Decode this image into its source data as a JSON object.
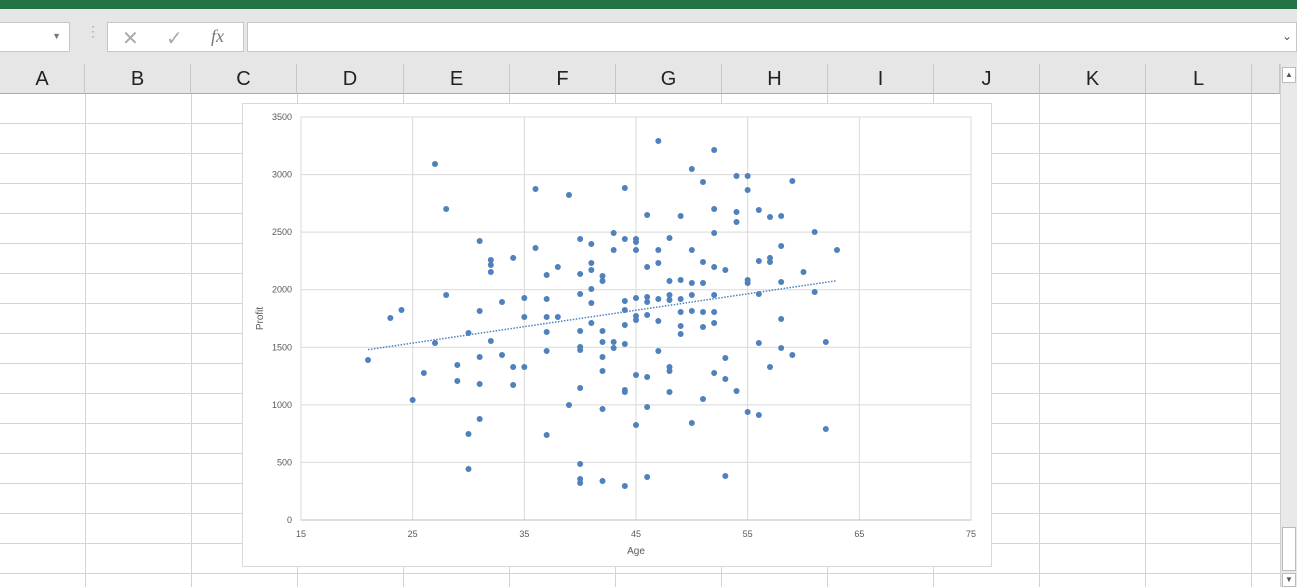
{
  "formula_bar": {
    "name_box": "",
    "cancel_icon": "✕",
    "enter_icon": "✓",
    "fx_label": "fx",
    "formula": ""
  },
  "columns": [
    "A",
    "B",
    "C",
    "D",
    "E",
    "F",
    "G",
    "H",
    "I",
    "J",
    "K",
    "L"
  ],
  "colors": {
    "ribbon": "#217346",
    "series": "#4f81bd"
  },
  "chart_data": {
    "type": "scatter",
    "title": "",
    "xlabel": "Age",
    "ylabel": "Profit",
    "xlim": [
      15,
      75
    ],
    "ylim": [
      0,
      3500
    ],
    "xticks": [
      "15",
      "25",
      "35",
      "45",
      "55",
      "65",
      "75"
    ],
    "yticks": [
      "0",
      "500",
      "1000",
      "1500",
      "2000",
      "2500",
      "3000",
      "3500"
    ],
    "grid": true,
    "legend": "none",
    "trendline": "linear (dotted)",
    "points": [
      [
        21,
        1390
      ],
      [
        23,
        1754
      ],
      [
        24,
        1824
      ],
      [
        25,
        1042
      ],
      [
        26,
        1277
      ],
      [
        27,
        3092
      ],
      [
        27,
        1537
      ],
      [
        28,
        2701
      ],
      [
        28,
        1954
      ],
      [
        29,
        1346
      ],
      [
        29,
        1207
      ],
      [
        30,
        1624
      ],
      [
        30,
        747
      ],
      [
        30,
        443
      ],
      [
        31,
        2423
      ],
      [
        31,
        1815
      ],
      [
        31,
        1416
      ],
      [
        31,
        1181
      ],
      [
        31,
        877
      ],
      [
        32,
        2258
      ],
      [
        32,
        2215
      ],
      [
        32,
        2154
      ],
      [
        32,
        1555
      ],
      [
        33,
        1893
      ],
      [
        33,
        1433
      ],
      [
        34,
        2276
      ],
      [
        34,
        1329
      ],
      [
        34,
        1172
      ],
      [
        35,
        1928
      ],
      [
        35,
        1763
      ],
      [
        35,
        1329
      ],
      [
        36,
        2875
      ],
      [
        36,
        2362
      ],
      [
        37,
        2128
      ],
      [
        37,
        1919
      ],
      [
        37,
        1763
      ],
      [
        37,
        1633
      ],
      [
        37,
        1468
      ],
      [
        37,
        738
      ],
      [
        38,
        2197
      ],
      [
        38,
        1763
      ],
      [
        39,
        2823
      ],
      [
        39,
        999
      ],
      [
        40,
        2440
      ],
      [
        40,
        2137
      ],
      [
        40,
        1963
      ],
      [
        40,
        1641
      ],
      [
        40,
        1503
      ],
      [
        40,
        1476
      ],
      [
        40,
        1146
      ],
      [
        40,
        486
      ],
      [
        40,
        356
      ],
      [
        40,
        321
      ],
      [
        41,
        2397
      ],
      [
        41,
        2232
      ],
      [
        41,
        2171
      ],
      [
        41,
        2006
      ],
      [
        41,
        1885
      ],
      [
        41,
        1711
      ],
      [
        42,
        2119
      ],
      [
        42,
        2076
      ],
      [
        42,
        1641
      ],
      [
        42,
        1546
      ],
      [
        42,
        1416
      ],
      [
        42,
        1294
      ],
      [
        42,
        964
      ],
      [
        42,
        339
      ],
      [
        43,
        2493
      ],
      [
        43,
        2345
      ],
      [
        43,
        1546
      ],
      [
        43,
        1494
      ],
      [
        44,
        2883
      ],
      [
        44,
        2440
      ],
      [
        44,
        1902
      ],
      [
        44,
        1824
      ],
      [
        44,
        1694
      ],
      [
        44,
        1529
      ],
      [
        44,
        1129
      ],
      [
        44,
        1112
      ],
      [
        44,
        295
      ],
      [
        45,
        2440
      ],
      [
        45,
        2414
      ],
      [
        45,
        2345
      ],
      [
        45,
        1928
      ],
      [
        45,
        1772
      ],
      [
        45,
        1737
      ],
      [
        45,
        1259
      ],
      [
        45,
        825
      ],
      [
        46,
        2649
      ],
      [
        46,
        2197
      ],
      [
        46,
        1937
      ],
      [
        46,
        1893
      ],
      [
        46,
        1780
      ],
      [
        46,
        1242
      ],
      [
        46,
        981
      ],
      [
        46,
        373
      ],
      [
        47,
        3292
      ],
      [
        47,
        2345
      ],
      [
        47,
        2232
      ],
      [
        47,
        1919
      ],
      [
        47,
        1728
      ],
      [
        47,
        1468
      ],
      [
        48,
        2449
      ],
      [
        48,
        2076
      ],
      [
        48,
        1954
      ],
      [
        48,
        1911
      ],
      [
        48,
        1329
      ],
      [
        48,
        1294
      ],
      [
        48,
        1112
      ],
      [
        49,
        2640
      ],
      [
        49,
        2084
      ],
      [
        49,
        1919
      ],
      [
        49,
        1806
      ],
      [
        49,
        1685
      ],
      [
        49,
        1615
      ],
      [
        50,
        3048
      ],
      [
        50,
        2345
      ],
      [
        50,
        2058
      ],
      [
        50,
        1954
      ],
      [
        50,
        1815
      ],
      [
        50,
        842
      ],
      [
        51,
        2935
      ],
      [
        51,
        2241
      ],
      [
        51,
        2058
      ],
      [
        51,
        1806
      ],
      [
        51,
        1676
      ],
      [
        51,
        1051
      ],
      [
        52,
        3213
      ],
      [
        52,
        2701
      ],
      [
        52,
        2493
      ],
      [
        52,
        2197
      ],
      [
        52,
        1954
      ],
      [
        52,
        1806
      ],
      [
        52,
        1711
      ],
      [
        52,
        1277
      ],
      [
        53,
        2171
      ],
      [
        53,
        1407
      ],
      [
        53,
        1225
      ],
      [
        53,
        382
      ],
      [
        54,
        2988
      ],
      [
        54,
        2675
      ],
      [
        54,
        2588
      ],
      [
        54,
        1120
      ],
      [
        55,
        2988
      ],
      [
        55,
        2866
      ],
      [
        55,
        2084
      ],
      [
        55,
        2058
      ],
      [
        55,
        938
      ],
      [
        56,
        2692
      ],
      [
        56,
        2249
      ],
      [
        56,
        1963
      ],
      [
        56,
        1537
      ],
      [
        56,
        912
      ],
      [
        57,
        2632
      ],
      [
        57,
        2276
      ],
      [
        57,
        2241
      ],
      [
        57,
        1329
      ],
      [
        58,
        2640
      ],
      [
        58,
        2380
      ],
      [
        58,
        2067
      ],
      [
        58,
        1746
      ],
      [
        58,
        1494
      ],
      [
        59,
        2944
      ],
      [
        59,
        1433
      ],
      [
        60,
        2154
      ],
      [
        61,
        2501
      ],
      [
        61,
        1980
      ],
      [
        62,
        1546
      ],
      [
        62,
        790
      ],
      [
        63,
        2345
      ]
    ]
  }
}
